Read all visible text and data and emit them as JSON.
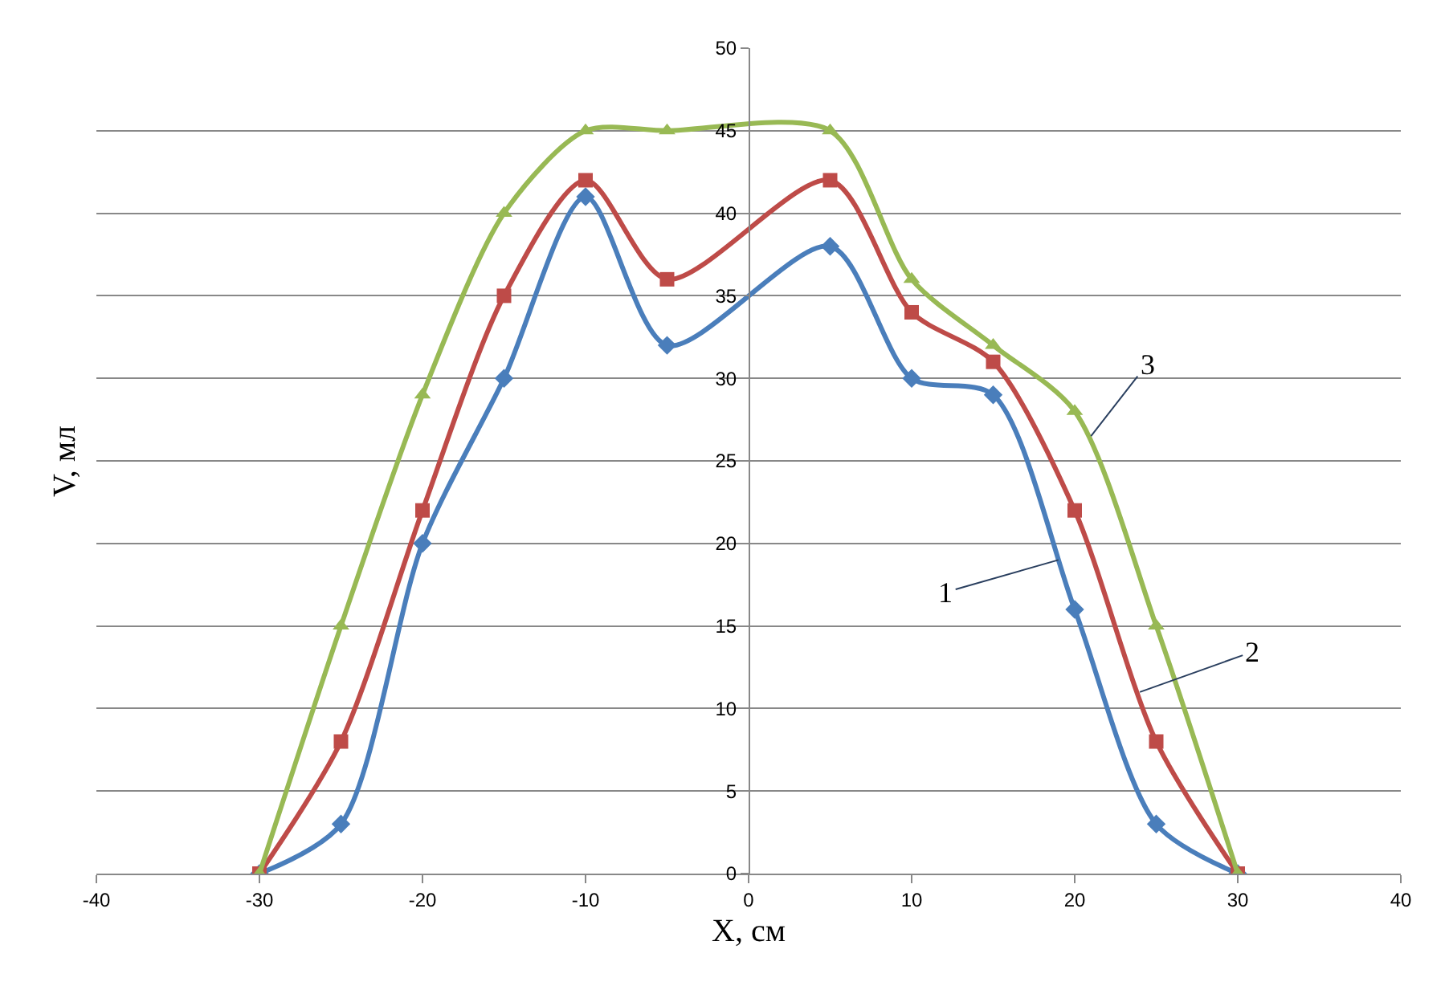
{
  "chart_data": {
    "type": "line",
    "xlabel": "X, см",
    "ylabel": "V, мл",
    "x": [
      -30,
      -25,
      -20,
      -15,
      -10,
      -5,
      5,
      10,
      15,
      20,
      25,
      30
    ],
    "series": [
      {
        "color": "#4a7ebb",
        "marker": "diamond",
        "values": [
          0,
          3,
          20,
          30,
          41,
          32,
          38,
          30,
          29,
          16,
          3,
          0
        ]
      },
      {
        "color": "#be4b48",
        "marker": "square",
        "values": [
          0,
          8,
          22,
          35,
          42,
          36,
          42,
          34,
          31,
          22,
          8,
          0
        ]
      },
      {
        "color": "#98b954",
        "marker": "triangle",
        "values": [
          0,
          15,
          29,
          40,
          45,
          45,
          45,
          36,
          32,
          28,
          15,
          0
        ]
      }
    ],
    "xlim": [
      -40,
      40
    ],
    "xticks": [
      -40,
      -30,
      -20,
      -10,
      0,
      10,
      20,
      30,
      40
    ],
    "ylim": [
      0,
      50
    ],
    "yticks": [
      0,
      5,
      10,
      15,
      20,
      25,
      30,
      35,
      40,
      45,
      50
    ],
    "grid": "y",
    "legend": false,
    "annotations": [
      {
        "text": "1",
        "x": 19,
        "y": 19
      },
      {
        "text": "2",
        "x": 24,
        "y": 11
      },
      {
        "text": "3",
        "x": 21,
        "y": 26.5
      }
    ]
  }
}
